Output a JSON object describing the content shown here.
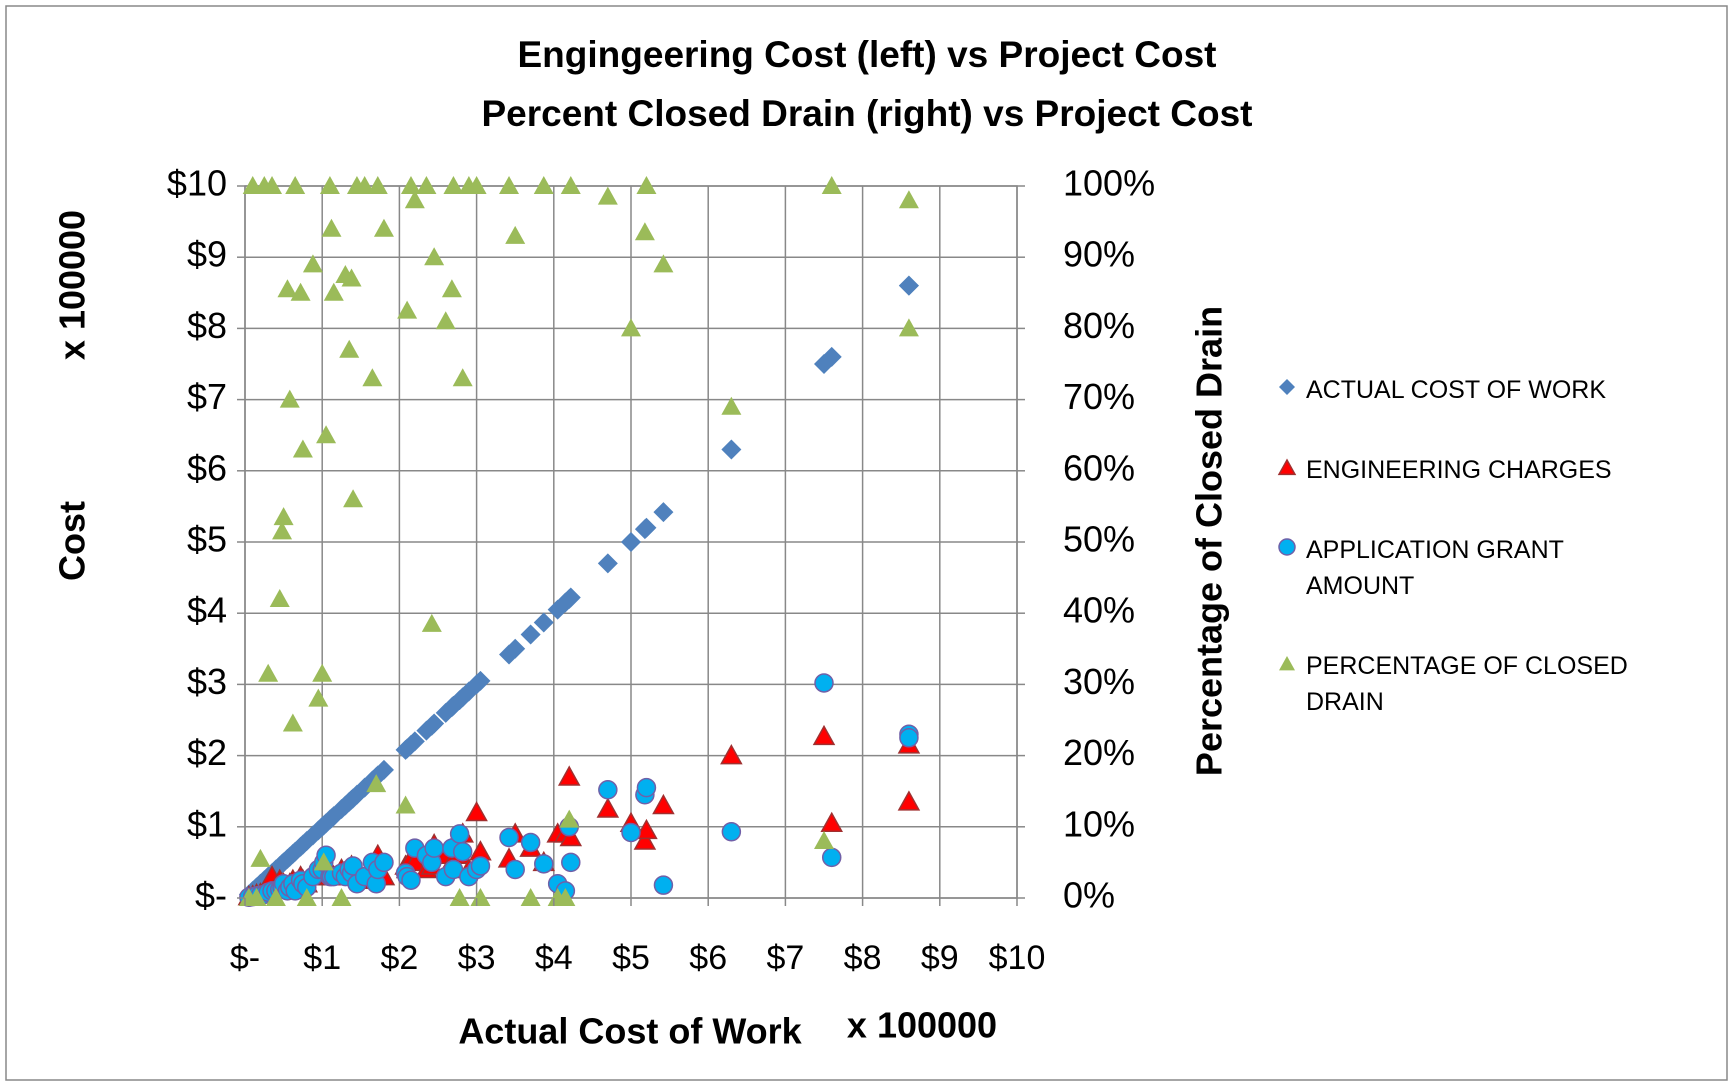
{
  "chart_data": {
    "type": "scatter",
    "title": [
      "Engingeering Cost (left) vs Project Cost",
      "Percent Closed Drain (right) vs Project Cost"
    ],
    "x_label": "Actual Cost of Work",
    "x_multiplier": "x 100000",
    "y_label": "Cost",
    "y_multiplier": "x 100000",
    "y2_label": "Percentage of Closed Drain",
    "xlim": [
      0,
      10
    ],
    "xticks": [
      {
        "value": 0,
        "label": "$-"
      },
      {
        "value": 1,
        "label": "$1"
      },
      {
        "value": 2,
        "label": "$2"
      },
      {
        "value": 3,
        "label": "$3"
      },
      {
        "value": 4,
        "label": "$4"
      },
      {
        "value": 5,
        "label": "$5"
      },
      {
        "value": 6,
        "label": "$6"
      },
      {
        "value": 7,
        "label": "$7"
      },
      {
        "value": 8,
        "label": "$8"
      },
      {
        "value": 9,
        "label": "$9"
      },
      {
        "value": 10,
        "label": "$10"
      }
    ],
    "ylim": [
      0,
      10
    ],
    "yticks": [
      {
        "value": 0,
        "label": "$-"
      },
      {
        "value": 1,
        "label": "$1"
      },
      {
        "value": 2,
        "label": "$2"
      },
      {
        "value": 3,
        "label": "$3"
      },
      {
        "value": 4,
        "label": "$4"
      },
      {
        "value": 5,
        "label": "$5"
      },
      {
        "value": 6,
        "label": "$6"
      },
      {
        "value": 7,
        "label": "$7"
      },
      {
        "value": 8,
        "label": "$8"
      },
      {
        "value": 9,
        "label": "$9"
      },
      {
        "value": 10,
        "label": "$10"
      }
    ],
    "y2lim": [
      0,
      100
    ],
    "y2ticks": [
      {
        "value": 0,
        "label": "0%"
      },
      {
        "value": 10,
        "label": "10%"
      },
      {
        "value": 20,
        "label": "20%"
      },
      {
        "value": 30,
        "label": "30%"
      },
      {
        "value": 40,
        "label": "40%"
      },
      {
        "value": 50,
        "label": "50%"
      },
      {
        "value": 60,
        "label": "60%"
      },
      {
        "value": 70,
        "label": "70%"
      },
      {
        "value": 80,
        "label": "80%"
      },
      {
        "value": 90,
        "label": "90%"
      },
      {
        "value": 100,
        "label": "100%"
      }
    ],
    "grid": true,
    "legend": "right",
    "x": [
      0.05,
      0.1,
      0.15,
      0.2,
      0.25,
      0.3,
      0.35,
      0.4,
      0.45,
      0.48,
      0.5,
      0.55,
      0.58,
      0.62,
      0.65,
      0.72,
      0.75,
      0.8,
      0.88,
      0.95,
      1.0,
      1.02,
      1.05,
      1.1,
      1.12,
      1.15,
      1.25,
      1.3,
      1.35,
      1.38,
      1.4,
      1.45,
      1.55,
      1.65,
      1.7,
      1.72,
      1.8,
      2.08,
      2.1,
      2.15,
      2.2,
      2.35,
      2.42,
      2.45,
      2.6,
      2.68,
      2.7,
      2.78,
      2.82,
      2.9,
      3.0,
      3.05,
      3.42,
      3.5,
      3.7,
      3.87,
      4.05,
      4.15,
      4.2,
      4.22,
      4.7,
      5.0,
      5.18,
      5.2,
      5.42,
      6.3,
      7.5,
      7.6,
      8.6,
      8.6
    ],
    "series": [
      {
        "name": "ACTUAL COST OF WORK",
        "color": "#4f81bd",
        "marker": "diamond",
        "values": [
          0.05,
          0.1,
          0.15,
          0.2,
          0.25,
          0.3,
          0.35,
          0.4,
          0.45,
          0.48,
          0.5,
          0.55,
          0.58,
          0.62,
          0.65,
          0.72,
          0.75,
          0.8,
          0.88,
          0.95,
          1.0,
          1.02,
          1.05,
          1.1,
          1.12,
          1.15,
          1.25,
          1.3,
          1.35,
          1.38,
          1.4,
          1.45,
          1.55,
          1.65,
          1.7,
          1.72,
          1.8,
          2.08,
          2.1,
          2.15,
          2.2,
          2.35,
          2.42,
          2.45,
          2.6,
          2.68,
          2.7,
          2.78,
          2.82,
          2.9,
          3.0,
          3.05,
          3.42,
          3.5,
          3.7,
          3.87,
          4.05,
          4.15,
          4.2,
          4.22,
          4.7,
          5.0,
          5.18,
          5.2,
          5.42,
          6.3,
          7.5,
          7.6,
          8.6,
          8.6
        ]
      },
      {
        "name": "ENGINEERING CHARGES",
        "color": "#ff0000",
        "marker": "triangle",
        "values": [
          0.02,
          0.03,
          0.05,
          0.06,
          0.08,
          0.1,
          0.3,
          0.15,
          0.25,
          0.2,
          0.2,
          0.15,
          0.2,
          0.25,
          0.2,
          0.3,
          0.25,
          0.2,
          0.3,
          0.3,
          0.35,
          0.4,
          0.35,
          0.3,
          0.35,
          0.3,
          0.4,
          0.35,
          0.3,
          0.45,
          0.3,
          0.35,
          0.25,
          0.4,
          0.3,
          0.6,
          0.3,
          0.45,
          0.4,
          0.55,
          0.5,
          0.4,
          0.45,
          0.75,
          0.6,
          0.5,
          0.75,
          0.6,
          0.9,
          0.4,
          1.2,
          0.65,
          0.55,
          0.9,
          0.7,
          0.5,
          0.9,
          0.9,
          1.7,
          0.85,
          1.25,
          1.05,
          0.8,
          0.95,
          1.3,
          2.0,
          2.27,
          1.05,
          2.15,
          1.35
        ]
      },
      {
        "name": "APPLICATION GRANT AMOUNT",
        "color": "#00b0f0",
        "marker": "circle",
        "values": [
          0.01,
          0.02,
          0.03,
          0.04,
          0.05,
          0.08,
          0.1,
          0.1,
          0.12,
          0.15,
          0.2,
          0.1,
          0.15,
          0.2,
          0.1,
          0.25,
          0.2,
          0.15,
          0.3,
          0.4,
          0.4,
          0.5,
          0.6,
          0.3,
          0.3,
          0.3,
          0.35,
          0.3,
          0.4,
          0.35,
          0.45,
          0.2,
          0.3,
          0.5,
          0.2,
          0.4,
          0.5,
          0.35,
          0.3,
          0.25,
          0.7,
          0.6,
          0.5,
          0.7,
          0.3,
          0.7,
          0.4,
          0.9,
          0.65,
          0.3,
          0.4,
          0.45,
          0.85,
          0.4,
          0.78,
          0.48,
          0.2,
          0.1,
          1.0,
          0.5,
          1.52,
          0.92,
          1.45,
          1.55,
          0.18,
          0.93,
          3.02,
          0.57,
          2.3,
          2.25
        ]
      },
      {
        "name": "PERCENTAGE OF CLOSED DRAIN",
        "color": "#9bbb59",
        "marker": "triangle",
        "axis": "y2",
        "values": [
          0,
          100,
          0,
          5.5,
          100,
          31.5,
          100,
          0,
          42,
          51.5,
          53.5,
          85.5,
          70,
          24.5,
          100,
          85,
          63,
          0,
          89,
          28,
          31.5,
          5,
          65,
          100,
          94,
          85,
          0,
          87.5,
          77,
          87,
          56,
          100,
          100,
          73,
          16,
          100,
          94,
          13,
          82.5,
          100,
          98,
          100,
          38.5,
          90,
          81,
          85.5,
          100,
          0,
          73,
          100,
          100,
          0,
          100,
          93,
          0,
          100,
          0,
          0,
          11,
          100,
          98.5,
          80,
          93.5,
          100,
          89,
          69,
          8,
          100,
          98,
          80
        ]
      }
    ]
  }
}
